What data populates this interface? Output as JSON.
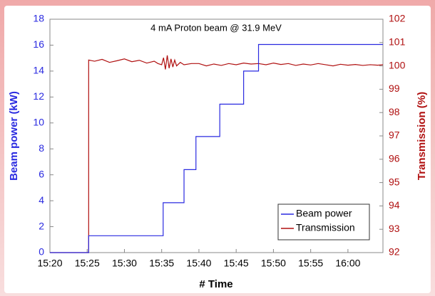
{
  "chart_data": {
    "type": "line",
    "title": "4 mA Proton beam @ 31.9 MeV",
    "xlabel": "# Time",
    "ylabel": "Beam power (kW)",
    "y2label": "Transmission (%)",
    "xlim": [
      920,
      964.7
    ],
    "xticks": [
      {
        "value": 920,
        "label": "15:20"
      },
      {
        "value": 925,
        "label": "15:25"
      },
      {
        "value": 930,
        "label": "15:30"
      },
      {
        "value": 935,
        "label": "15:35"
      },
      {
        "value": 940,
        "label": "15:40"
      },
      {
        "value": 945,
        "label": "15:45"
      },
      {
        "value": 950,
        "label": "15:50"
      },
      {
        "value": 955,
        "label": "15:55"
      },
      {
        "value": 960,
        "label": "16:00"
      }
    ],
    "ylim": [
      0,
      18
    ],
    "yticks": [
      0,
      2,
      4,
      6,
      8,
      10,
      12,
      14,
      16,
      18
    ],
    "y2lim": [
      92,
      102
    ],
    "y2ticks": [
      92,
      93,
      94,
      95,
      96,
      97,
      98,
      99,
      100,
      101,
      102
    ],
    "legend": "lower right",
    "series": [
      {
        "name": "Beam power",
        "color": "#2a2ae0",
        "x": [
          920,
          925.2,
          925.2,
          935.2,
          935.2,
          938,
          938,
          939.6,
          939.6,
          942.8,
          942.8,
          946,
          946,
          948,
          948,
          964.7
        ],
        "values": [
          0,
          0,
          1.3,
          1.3,
          3.85,
          3.85,
          6.4,
          6.4,
          8.95,
          8.95,
          11.45,
          11.45,
          14,
          14,
          16.05,
          16.05
        ]
      },
      {
        "name": "Transmission",
        "color": "#b01010",
        "axis": "y2",
        "x": [
          920,
          925.2,
          925.2,
          926,
          927,
          928,
          929,
          930,
          931,
          932,
          933,
          934,
          934.5,
          935,
          935.25,
          935.5,
          935.75,
          936,
          936.25,
          936.5,
          936.75,
          937,
          937.5,
          938,
          939,
          940,
          941,
          942,
          943,
          944,
          945,
          946,
          947,
          948,
          949,
          950,
          951,
          952,
          953,
          954,
          955,
          956,
          957,
          958,
          959,
          960,
          961,
          962,
          963,
          964,
          964.7
        ],
        "values": [
          92,
          92,
          100.25,
          100.2,
          100.28,
          100.15,
          100.22,
          100.3,
          100.18,
          100.24,
          100.12,
          100.2,
          100.1,
          100.05,
          100.35,
          99.85,
          100.45,
          99.9,
          100.3,
          99.95,
          100.25,
          100.0,
          100.15,
          100.05,
          100.1,
          100.1,
          100.0,
          100.08,
          100.02,
          100.1,
          100.05,
          100.12,
          100.08,
          100.1,
          100.05,
          100.12,
          100.06,
          100.1,
          100.02,
          100.08,
          100.04,
          100.1,
          100.05,
          100.0,
          100.07,
          100.03,
          100.06,
          100.02,
          100.05,
          100.03,
          100.05
        ]
      }
    ]
  }
}
